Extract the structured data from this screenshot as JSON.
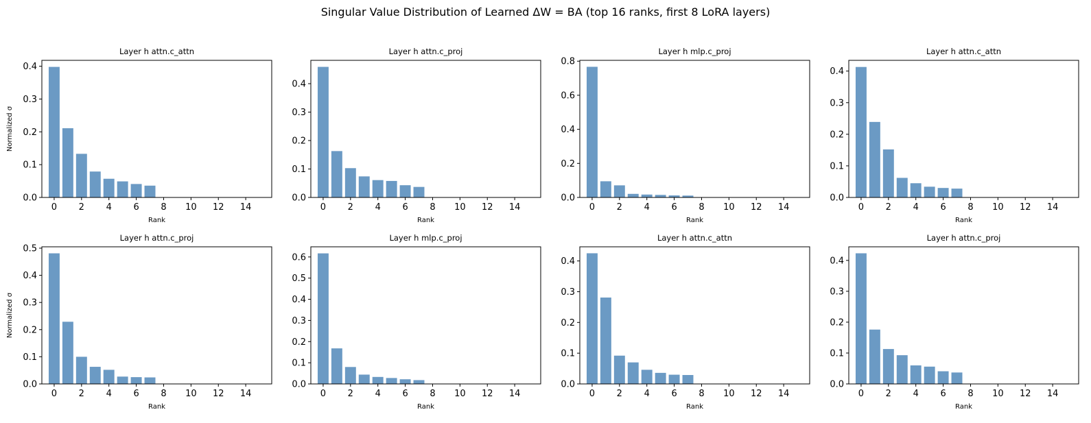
{
  "figure_title": "Singular Value Distribution of Learned ΔW = BA (top 16 ranks, first 8 LoRA layers)",
  "colors": {
    "bar": "#6b9ac4",
    "axes": "#000000",
    "background": "#ffffff"
  },
  "chart_data": [
    {
      "type": "bar",
      "title": "Layer h attn.c_attn",
      "xlabel": "Rank",
      "ylabel": "Normalized σ",
      "x": [
        0,
        1,
        2,
        3,
        4,
        5,
        6,
        7,
        8,
        9,
        10,
        11,
        12,
        13,
        14,
        15
      ],
      "values": [
        0.398,
        0.211,
        0.133,
        0.079,
        0.057,
        0.049,
        0.041,
        0.036,
        0,
        0,
        0,
        0,
        0,
        0,
        0,
        0
      ],
      "xticks": [
        0,
        2,
        4,
        6,
        8,
        10,
        12,
        14
      ],
      "yticks": [
        0.0,
        0.1,
        0.2,
        0.3,
        0.4
      ],
      "ylim": [
        0,
        0.418
      ],
      "xlim": [
        -0.9,
        15.9
      ],
      "grid": false
    },
    {
      "type": "bar",
      "title": "Layer h attn.c_proj",
      "xlabel": "Rank",
      "ylabel": "",
      "x": [
        0,
        1,
        2,
        3,
        4,
        5,
        6,
        7,
        8,
        9,
        10,
        11,
        12,
        13,
        14,
        15
      ],
      "values": [
        0.459,
        0.163,
        0.103,
        0.074,
        0.061,
        0.058,
        0.043,
        0.037,
        0,
        0,
        0,
        0,
        0,
        0,
        0,
        0
      ],
      "xticks": [
        0,
        2,
        4,
        6,
        8,
        10,
        12,
        14
      ],
      "yticks": [
        0.0,
        0.1,
        0.2,
        0.3,
        0.4
      ],
      "ylim": [
        0,
        0.482
      ],
      "xlim": [
        -0.9,
        15.9
      ],
      "grid": false
    },
    {
      "type": "bar",
      "title": "Layer h mlp.c_proj",
      "xlabel": "Rank",
      "ylabel": "",
      "x": [
        0,
        1,
        2,
        3,
        4,
        5,
        6,
        7,
        8,
        9,
        10,
        11,
        12,
        13,
        14,
        15
      ],
      "values": [
        0.767,
        0.095,
        0.071,
        0.021,
        0.017,
        0.015,
        0.012,
        0.011,
        0,
        0,
        0,
        0,
        0,
        0,
        0,
        0
      ],
      "xticks": [
        0,
        2,
        4,
        6,
        8,
        10,
        12,
        14
      ],
      "yticks": [
        0.0,
        0.2,
        0.4,
        0.6,
        0.8
      ],
      "ylim": [
        0,
        0.805
      ],
      "xlim": [
        -0.9,
        15.9
      ],
      "grid": false
    },
    {
      "type": "bar",
      "title": "Layer h attn.c_attn",
      "xlabel": "Rank",
      "ylabel": "",
      "x": [
        0,
        1,
        2,
        3,
        4,
        5,
        6,
        7,
        8,
        9,
        10,
        11,
        12,
        13,
        14,
        15
      ],
      "values": [
        0.413,
        0.239,
        0.152,
        0.062,
        0.045,
        0.034,
        0.03,
        0.028,
        0,
        0,
        0,
        0,
        0,
        0,
        0,
        0
      ],
      "xticks": [
        0,
        2,
        4,
        6,
        8,
        10,
        12,
        14
      ],
      "yticks": [
        0.0,
        0.1,
        0.2,
        0.3,
        0.4
      ],
      "ylim": [
        0,
        0.434
      ],
      "xlim": [
        -0.9,
        15.9
      ],
      "grid": false
    },
    {
      "type": "bar",
      "title": "Layer h attn.c_proj",
      "xlabel": "Rank",
      "ylabel": "Normalized σ",
      "x": [
        0,
        1,
        2,
        3,
        4,
        5,
        6,
        7,
        8,
        9,
        10,
        11,
        12,
        13,
        14,
        15
      ],
      "values": [
        0.481,
        0.229,
        0.1,
        0.063,
        0.052,
        0.027,
        0.025,
        0.024,
        0,
        0,
        0,
        0,
        0,
        0,
        0,
        0
      ],
      "xticks": [
        0,
        2,
        4,
        6,
        8,
        10,
        12,
        14
      ],
      "yticks": [
        0.0,
        0.1,
        0.2,
        0.3,
        0.4,
        0.5
      ],
      "ylim": [
        0,
        0.505
      ],
      "xlim": [
        -0.9,
        15.9
      ],
      "grid": false
    },
    {
      "type": "bar",
      "title": "Layer h mlp.c_proj",
      "xlabel": "Rank",
      "ylabel": "",
      "x": [
        0,
        1,
        2,
        3,
        4,
        5,
        6,
        7,
        8,
        9,
        10,
        11,
        12,
        13,
        14,
        15
      ],
      "values": [
        0.617,
        0.168,
        0.08,
        0.044,
        0.033,
        0.028,
        0.022,
        0.018,
        0,
        0,
        0,
        0,
        0,
        0,
        0,
        0
      ],
      "xticks": [
        0,
        2,
        4,
        6,
        8,
        10,
        12,
        14
      ],
      "yticks": [
        0.0,
        0.1,
        0.2,
        0.3,
        0.4,
        0.5,
        0.6
      ],
      "ylim": [
        0,
        0.648
      ],
      "xlim": [
        -0.9,
        15.9
      ],
      "grid": false
    },
    {
      "type": "bar",
      "title": "Layer h attn.c_attn",
      "xlabel": "Rank",
      "ylabel": "",
      "x": [
        0,
        1,
        2,
        3,
        4,
        5,
        6,
        7,
        8,
        9,
        10,
        11,
        12,
        13,
        14,
        15
      ],
      "values": [
        0.425,
        0.281,
        0.092,
        0.07,
        0.046,
        0.036,
        0.03,
        0.029,
        0,
        0,
        0,
        0,
        0,
        0,
        0,
        0
      ],
      "xticks": [
        0,
        2,
        4,
        6,
        8,
        10,
        12,
        14
      ],
      "yticks": [
        0.0,
        0.1,
        0.2,
        0.3,
        0.4
      ],
      "ylim": [
        0,
        0.446
      ],
      "xlim": [
        -0.9,
        15.9
      ],
      "grid": false
    },
    {
      "type": "bar",
      "title": "Layer h attn.c_proj",
      "xlabel": "Rank",
      "ylabel": "",
      "x": [
        0,
        1,
        2,
        3,
        4,
        5,
        6,
        7,
        8,
        9,
        10,
        11,
        12,
        13,
        14,
        15
      ],
      "values": [
        0.423,
        0.176,
        0.113,
        0.093,
        0.06,
        0.056,
        0.041,
        0.037,
        0,
        0,
        0,
        0,
        0,
        0,
        0,
        0
      ],
      "xticks": [
        0,
        2,
        4,
        6,
        8,
        10,
        12,
        14
      ],
      "yticks": [
        0.0,
        0.1,
        0.2,
        0.3,
        0.4
      ],
      "ylim": [
        0,
        0.444
      ],
      "xlim": [
        -0.9,
        15.9
      ],
      "grid": false
    }
  ]
}
